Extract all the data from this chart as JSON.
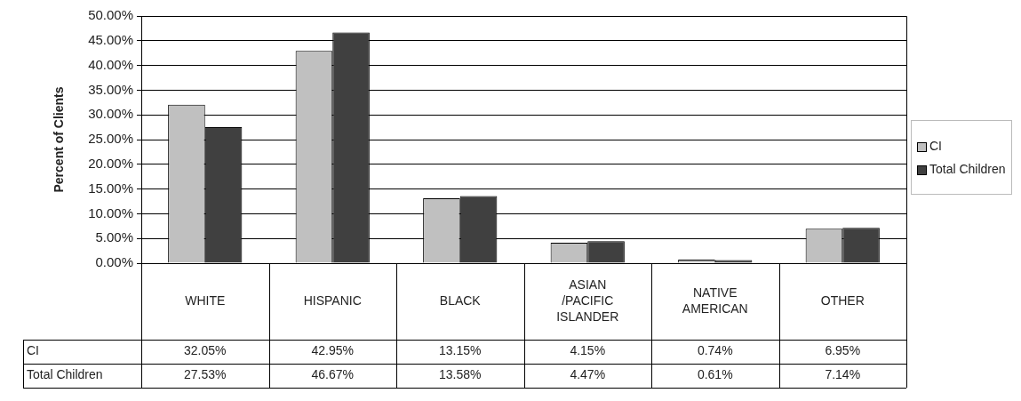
{
  "chart_data": {
    "type": "bar",
    "ylabel": "Percent of Clients",
    "categories": [
      "WHITE",
      "HISPANIC",
      "BLACK",
      "ASIAN /PACIFIC ISLANDER",
      "NATIVE AMERICAN",
      "OTHER"
    ],
    "series": [
      {
        "name": "CI",
        "color": "#c0c0c0",
        "values": [
          32.05,
          42.95,
          13.15,
          4.15,
          0.74,
          6.95
        ],
        "value_labels": [
          "32.05%",
          "42.95%",
          "13.15%",
          "4.15%",
          "0.74%",
          "6.95%"
        ]
      },
      {
        "name": "Total Children",
        "color": "#404040",
        "values": [
          27.53,
          46.67,
          13.58,
          4.47,
          0.61,
          7.14
        ],
        "value_labels": [
          "27.53%",
          "46.67%",
          "13.58%",
          "4.47%",
          "0.61%",
          "7.14%"
        ]
      }
    ],
    "ylim": [
      0,
      50
    ],
    "yticks": [
      {
        "value": 0,
        "label": "0.00%"
      },
      {
        "value": 5,
        "label": "5.00%"
      },
      {
        "value": 10,
        "label": "10.00%"
      },
      {
        "value": 15,
        "label": "15.00%"
      },
      {
        "value": 20,
        "label": "20.00%"
      },
      {
        "value": 25,
        "label": "25.00%"
      },
      {
        "value": 30,
        "label": "30.00%"
      },
      {
        "value": 35,
        "label": "35.00%"
      },
      {
        "value": 40,
        "label": "40.00%"
      },
      {
        "value": 45,
        "label": "45.00%"
      },
      {
        "value": 50,
        "label": "50.00%"
      }
    ],
    "grid": "y",
    "legend": "right"
  }
}
